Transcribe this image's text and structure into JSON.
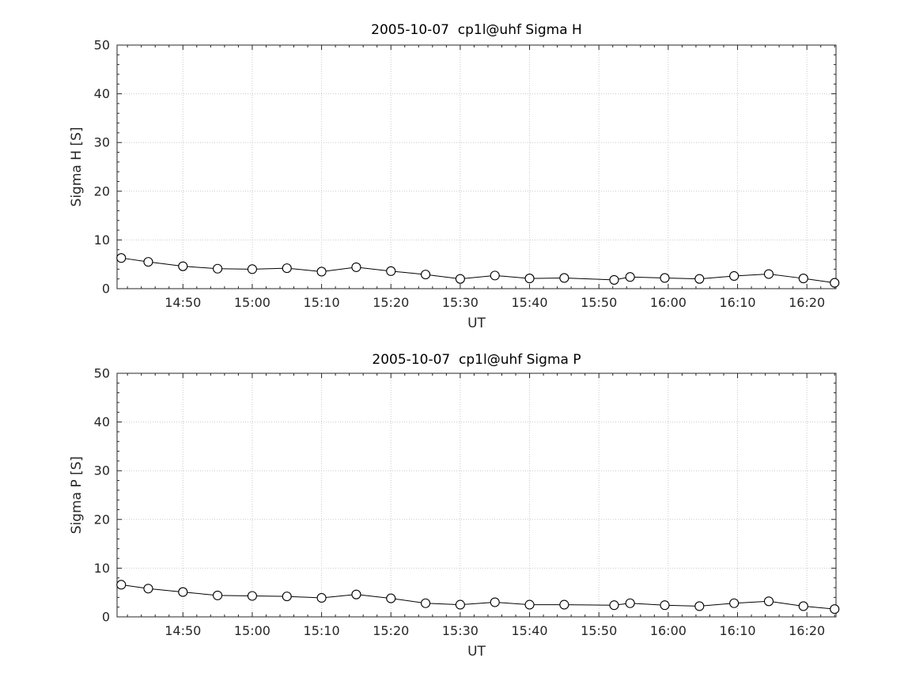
{
  "figure": {
    "background": "#ffffff",
    "axis_color": "#262626",
    "grid_color": "#c9c9c9",
    "line_color": "#000000"
  },
  "chart_data": [
    {
      "type": "line",
      "title": "2005-10-07  cp1l@uhf Sigma H",
      "xlabel": "UT",
      "ylabel": "Sigma H [S]",
      "ylim": [
        0,
        50
      ],
      "yticks": [
        0,
        10,
        20,
        30,
        40,
        50
      ],
      "xlim_minutes": [
        880.5,
        984.2
      ],
      "xtick_minutes": [
        890,
        900,
        910,
        920,
        930,
        940,
        950,
        960,
        970,
        980
      ],
      "xtick_labels": [
        "14:50",
        "15:00",
        "15:10",
        "15:20",
        "15:30",
        "15:40",
        "15:50",
        "16:00",
        "16:10",
        "16:20"
      ],
      "marker": "circle",
      "grid": true,
      "legend": "none",
      "x_minutes": [
        881.1,
        885,
        890,
        895,
        900,
        905,
        910,
        915,
        920,
        925,
        930,
        935,
        940,
        945,
        952.2,
        954.5,
        959.5,
        964.5,
        969.5,
        974.5,
        979.5,
        984
      ],
      "values": [
        6.3,
        5.5,
        4.6,
        4.1,
        4.0,
        4.2,
        3.5,
        4.4,
        3.6,
        2.9,
        2.0,
        2.7,
        2.1,
        2.2,
        1.8,
        2.4,
        2.2,
        2.0,
        2.6,
        3.0,
        2.1,
        1.2
      ]
    },
    {
      "type": "line",
      "title": "2005-10-07  cp1l@uhf Sigma P",
      "xlabel": "UT",
      "ylabel": "Sigma P [S]",
      "ylim": [
        0,
        50
      ],
      "yticks": [
        0,
        10,
        20,
        30,
        40,
        50
      ],
      "xlim_minutes": [
        880.5,
        984.2
      ],
      "xtick_minutes": [
        890,
        900,
        910,
        920,
        930,
        940,
        950,
        960,
        970,
        980
      ],
      "xtick_labels": [
        "14:50",
        "15:00",
        "15:10",
        "15:20",
        "15:30",
        "15:40",
        "15:50",
        "16:00",
        "16:10",
        "16:20"
      ],
      "marker": "circle",
      "grid": true,
      "legend": "none",
      "x_minutes": [
        881.1,
        885,
        890,
        895,
        900,
        905,
        910,
        915,
        920,
        925,
        930,
        935,
        940,
        945,
        952.2,
        954.5,
        959.5,
        964.5,
        969.5,
        974.5,
        979.5,
        984
      ],
      "values": [
        6.6,
        5.8,
        5.1,
        4.4,
        4.3,
        4.2,
        3.9,
        4.6,
        3.8,
        2.8,
        2.5,
        3.0,
        2.5,
        2.5,
        2.4,
        2.8,
        2.4,
        2.2,
        2.8,
        3.2,
        2.2,
        1.6
      ]
    }
  ]
}
